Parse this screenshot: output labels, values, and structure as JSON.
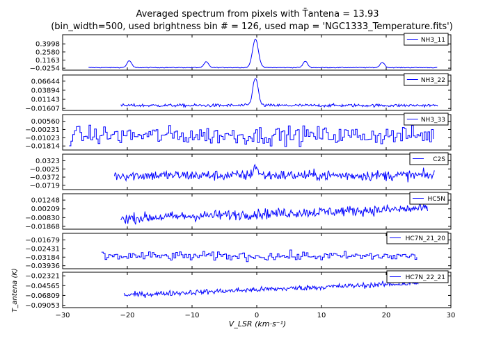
{
  "title_line1": "Averaged spectrum from pixels with T̄antena = 13.93",
  "title_line2": "(bin_width=500, used brightness bin # = 126, used map = 'NGC1333_Temperature.fits')",
  "xlabel": "V_LSR (km·s⁻¹)",
  "ylabel": "T_antena (K)",
  "chart_data": {
    "type": "line",
    "xlim": [
      -30,
      30
    ],
    "x_ticks": [
      -30,
      -20,
      -10,
      0,
      10,
      20,
      30
    ],
    "x_tick_labels": [
      "−30",
      "−20",
      "−10",
      "0",
      "10",
      "20",
      "30"
    ],
    "line_color": "#0000ff",
    "panels": [
      {
        "name": "NH3_11",
        "draw_style": "line",
        "x_range": [
          -26,
          28
        ],
        "baseline": -0.015,
        "noise": 0.006,
        "slope": 0,
        "ylim": [
          -0.06,
          0.56
        ],
        "yticks": [
          -0.0254,
          0.1163,
          0.258,
          0.3998
        ],
        "ytick_labels": [
          "−0.0254",
          "0.1163",
          "0.2580",
          "0.3998"
        ],
        "peaks": [
          {
            "center": -19.7,
            "amp": 0.12,
            "width": 0.35
          },
          {
            "center": -7.8,
            "amp": 0.1,
            "width": 0.35
          },
          {
            "center": -0.2,
            "amp": 0.5,
            "width": 0.45
          },
          {
            "center": 7.5,
            "amp": 0.11,
            "width": 0.35
          },
          {
            "center": 19.4,
            "amp": 0.09,
            "width": 0.35
          }
        ]
      },
      {
        "name": "NH3_22",
        "draw_style": "line",
        "x_range": [
          -21,
          28
        ],
        "baseline": -0.007,
        "noise": 0.0045,
        "slope": 0,
        "ylim": [
          -0.022,
          0.085
        ],
        "yticks": [
          -0.01607,
          0.01143,
          0.03894,
          0.06644
        ],
        "ytick_labels": [
          "−0.01607",
          "0.01143",
          "0.03894",
          "0.06644"
        ],
        "peaks": [
          {
            "center": -0.2,
            "amp": 0.085,
            "width": 0.4
          }
        ]
      },
      {
        "name": "NH3_33",
        "draw_style": "step",
        "x_range": [
          -29,
          27.5
        ],
        "baseline": -0.008,
        "noise": 0.0085,
        "slope": 0,
        "ylim": [
          -0.022,
          0.012
        ],
        "yticks": [
          -0.01814,
          -0.01023,
          -0.00231,
          0.0056
        ],
        "ytick_labels": [
          "−0.01814",
          "−0.01023",
          "−0.00231",
          "0.00560"
        ],
        "peaks": []
      },
      {
        "name": "C2S",
        "draw_style": "line",
        "x_range": [
          -22,
          27.5
        ],
        "baseline": -0.03,
        "noise": 0.022,
        "slope": 0,
        "ylim": [
          -0.09,
          0.06
        ],
        "yticks": [
          -0.0719,
          -0.0372,
          -0.0025,
          0.0323
        ],
        "ytick_labels": [
          "−0.0719",
          "−0.0372",
          "−0.0025",
          "0.0323"
        ],
        "peaks": [
          {
            "center": -0.2,
            "amp": 0.04,
            "width": 0.35
          }
        ]
      },
      {
        "name": "HC5N",
        "draw_style": "line",
        "x_range": [
          -21,
          26.5
        ],
        "baseline": -0.004,
        "noise": 0.006,
        "slope": 0.00025,
        "ylim": [
          -0.022,
          0.02
        ],
        "yticks": [
          -0.01868,
          -0.0083,
          0.00209,
          0.01248
        ],
        "ytick_labels": [
          "−0.01868",
          "−0.00830",
          "0.00209",
          "0.01248"
        ],
        "peaks": []
      },
      {
        "name": "HC7N_21_20",
        "draw_style": "step",
        "x_range": [
          -24,
          25
        ],
        "baseline": -0.031,
        "noise": 0.0038,
        "slope": 0,
        "ylim": [
          -0.042,
          -0.011
        ],
        "yticks": [
          -0.03936,
          -0.03184,
          -0.02431,
          -0.01679
        ],
        "ytick_labels": [
          "−0.03936",
          "−0.03184",
          "−0.02431",
          "−0.01679"
        ],
        "peaks": []
      },
      {
        "name": "HC7N_22_21",
        "draw_style": "line",
        "x_range": [
          -20.5,
          25
        ],
        "baseline": -0.055,
        "noise": 0.006,
        "slope": 0.0006,
        "ylim": [
          -0.096,
          -0.015
        ],
        "yticks": [
          -0.09053,
          -0.06809,
          -0.04565,
          -0.02321
        ],
        "ytick_labels": [
          "−0.09053",
          "−0.06809",
          "−0.04565",
          "−0.02321"
        ],
        "peaks": []
      }
    ]
  }
}
